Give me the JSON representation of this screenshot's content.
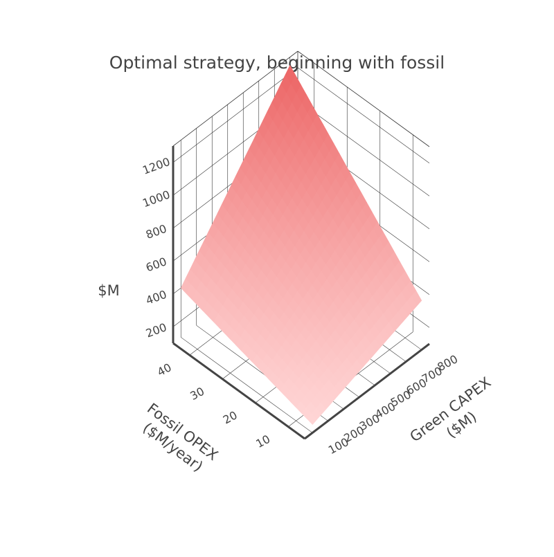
{
  "chart_data": {
    "type": "surface",
    "title": "Optimal strategy, beginning with fossil",
    "x_axis": {
      "title": [
        "Green CAPEX",
        "($M)"
      ],
      "ticks": [
        100,
        200,
        300,
        400,
        500,
        600,
        700,
        800
      ],
      "range": [
        50,
        850
      ]
    },
    "y_axis": {
      "title": [
        "Fossil OPEX",
        "($M/year)"
      ],
      "ticks": [
        10,
        20,
        30,
        40
      ],
      "range": [
        5,
        45
      ]
    },
    "z_axis": {
      "title": "$M",
      "ticks": [
        200,
        400,
        600,
        800,
        1000,
        1200
      ],
      "range": [
        100,
        1300
      ]
    },
    "surface": {
      "x": [
        100,
        800
      ],
      "y": [
        5,
        45
      ],
      "corner_values": {
        "x_min_y_min": 150,
        "x_max_y_min": 400,
        "x_min_y_max": 400,
        "x_max_y_max": 1250
      }
    },
    "colorscale": [
      "#ffd6d6",
      "#ec6464"
    ],
    "grid": true
  }
}
